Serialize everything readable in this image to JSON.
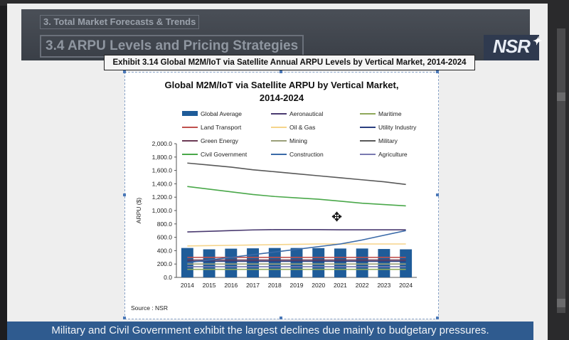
{
  "slide": {
    "section_label": "3. Total Market Forecasts & Trends",
    "title": "3.4 ARPU Levels and Pricing Strategies",
    "logo_text": "NSR",
    "exhibit_title": "Exhibit 3.14 Global M2M/IoT via Satellite Annual ARPU Levels by Vertical Market, 2014-2024",
    "caption": "Military and Civil Government exhibit the largest declines due mainly to budgetary pressures."
  },
  "chart_data": {
    "type": "bar",
    "title": "Global M2M/IoT via Satellite ARPU by Vertical Market,",
    "subtitle": "2014-2024",
    "ylabel": "ARPU ($)",
    "source": "Source : NSR",
    "ylim": [
      0,
      2000
    ],
    "yticks": [
      "0.0",
      "200.0",
      "400.0",
      "600.0",
      "800.0",
      "1,000.0",
      "1,200.0",
      "1,400.0",
      "1,600.0",
      "1,800.0",
      "2,000.0"
    ],
    "categories": [
      "2014",
      "2015",
      "2016",
      "2017",
      "2018",
      "2019",
      "2020",
      "2021",
      "2022",
      "2023",
      "2024"
    ],
    "bar_series": {
      "name": "Global Average",
      "color": "#1f5c99",
      "values": [
        440,
        420,
        430,
        435,
        440,
        440,
        438,
        432,
        432,
        425,
        420
      ]
    },
    "series": [
      {
        "name": "Aeronautical",
        "color": "#4a3a70",
        "values": [
          680,
          690,
          700,
          710,
          715,
          715,
          715,
          712,
          712,
          712,
          712
        ]
      },
      {
        "name": "Maritime",
        "color": "#8fa85a",
        "values": [
          120,
          120,
          120,
          120,
          120,
          120,
          120,
          120,
          120,
          120,
          120
        ]
      },
      {
        "name": "Land Transport",
        "color": "#c0504d",
        "values": [
          300,
          300,
          300,
          300,
          300,
          300,
          300,
          300,
          300,
          300,
          300
        ]
      },
      {
        "name": "Oil & Gas",
        "color": "#f5d48a",
        "values": [
          470,
          475,
          480,
          485,
          490,
          495,
          500,
          500,
          500,
          500,
          500
        ]
      },
      {
        "name": "Utility Industry",
        "color": "#2a3f80",
        "values": [
          240,
          240,
          240,
          240,
          240,
          240,
          240,
          240,
          240,
          240,
          240
        ]
      },
      {
        "name": "Green Energy",
        "color": "#6b3a55",
        "values": [
          260,
          260,
          260,
          260,
          260,
          260,
          260,
          260,
          260,
          260,
          260
        ]
      },
      {
        "name": "Mining",
        "color": "#9aa07a",
        "values": [
          200,
          200,
          200,
          200,
          200,
          200,
          200,
          200,
          200,
          200,
          200
        ]
      },
      {
        "name": "Military",
        "color": "#595959",
        "values": [
          1710,
          1680,
          1650,
          1610,
          1580,
          1550,
          1520,
          1490,
          1460,
          1430,
          1390
        ]
      },
      {
        "name": "Civil Government",
        "color": "#4aa84a",
        "values": [
          1360,
          1320,
          1280,
          1240,
          1210,
          1190,
          1170,
          1140,
          1110,
          1090,
          1070
        ]
      },
      {
        "name": "Construction",
        "color": "#3a6aa8",
        "values": [
          220,
          260,
          300,
          340,
          380,
          420,
          460,
          500,
          560,
          630,
          700
        ]
      },
      {
        "name": "Agriculture",
        "color": "#7a7ab0",
        "values": [
          160,
          160,
          160,
          160,
          160,
          160,
          160,
          160,
          160,
          160,
          160
        ]
      }
    ],
    "legend": {
      "placement": "top",
      "columns": 3
    }
  }
}
